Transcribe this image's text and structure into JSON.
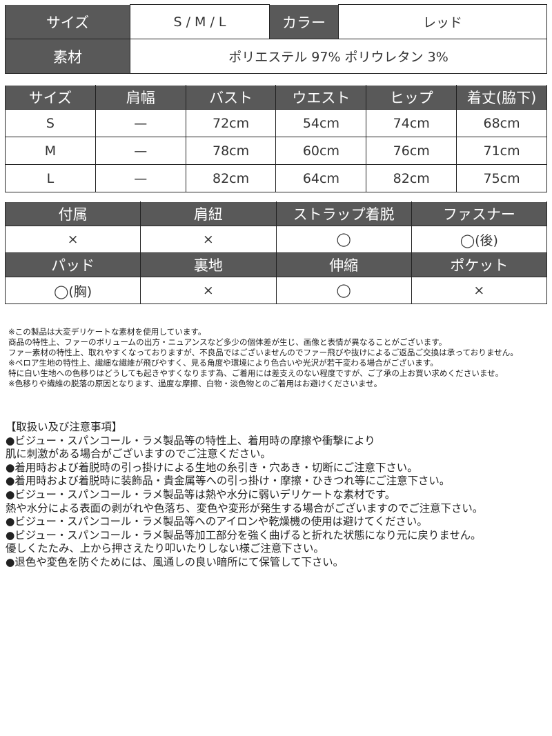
{
  "summary": {
    "size_label": "サイズ",
    "size_value": "S / M / L",
    "color_label": "カラー",
    "color_value": "レッド",
    "material_label": "素材",
    "material_value": "ポリエステル 97% ポリウレタン 3%"
  },
  "measurements": {
    "headers": [
      "サイズ",
      "肩幅",
      "バスト",
      "ウエスト",
      "ヒップ",
      "着丈(脇下)"
    ],
    "rows": [
      [
        "S",
        "—",
        "72cm",
        "54cm",
        "74cm",
        "68cm"
      ],
      [
        "M",
        "—",
        "78cm",
        "60cm",
        "76cm",
        "71cm"
      ],
      [
        "L",
        "—",
        "82cm",
        "64cm",
        "82cm",
        "75cm"
      ]
    ]
  },
  "features": {
    "headers1": [
      "付属",
      "肩紐",
      "ストラップ着脱",
      "ファスナー"
    ],
    "values1": [
      "×",
      "×",
      "◯",
      "◯(後)"
    ],
    "headers2": [
      "パッド",
      "裏地",
      "伸縮",
      "ポケット"
    ],
    "values2": [
      "◯(胸)",
      "×",
      "◯",
      "×"
    ]
  },
  "notes": [
    "※この製品は大変デリケートな素材を使用しています。",
    "商品の特性上、ファーのボリュームの出方・ニュアンスなど多少の個体差が生じ、画像と表情が異なることがございます。",
    "ファー素材の特性上、取れやすくなっておりますが、不良品ではございませんのでファー飛びや抜けによるご返品ご交換は承っておりません。",
    "※ベロア生地の特性上、繊細な繊維が飛びやすく、見る角度や環境により色合いや光沢が若干変わる場合がございます。",
    "特に白い生地への色移りはどうしても起きやすくなります為、ご着用には差支えのない程度ですが、ご了承の上お買い求めくださいませ。",
    "※色移りや繊維の脱落の原因となります、過度な摩擦、白物・淡色物とのご着用はお避けくださいませ。"
  ],
  "care": [
    "【取扱い及び注意事項】",
    "●ビジュー・スパンコール・ラメ製品等の特性上、着用時の摩擦や衝撃により",
    "肌に刺激がある場合がございますのでご注意ください。",
    "●着用時および着脱時の引っ掛けによる生地の糸引き・穴あき・切断にご注意下さい。",
    "●着用時および着脱時に装飾品・貴金属等への引っ掛け・摩擦・ひきつれ等にご注意下さい。",
    "●ビジュー・スパンコール・ラメ製品等は熱や水分に弱いデリケートな素材です。",
    "熱や水分による表面の剥がれや色落ち、変色や変形が発生する場合がございますのでご注意下さい。",
    "●ビジュー・スパンコール・ラメ製品等へのアイロンや乾燥機の使用は避けてください。",
    "●ビジュー・スパンコール・ラメ製品等加工部分を強く曲げると折れた状態になり元に戻りません。",
    "優しくたたみ、上から押さえたり叩いたりしない様ご注意下さい。",
    "●退色や変色を防ぐためには、風通しの良い暗所にて保管して下さい。"
  ],
  "colors": {
    "header_bg": "#595959"
  }
}
